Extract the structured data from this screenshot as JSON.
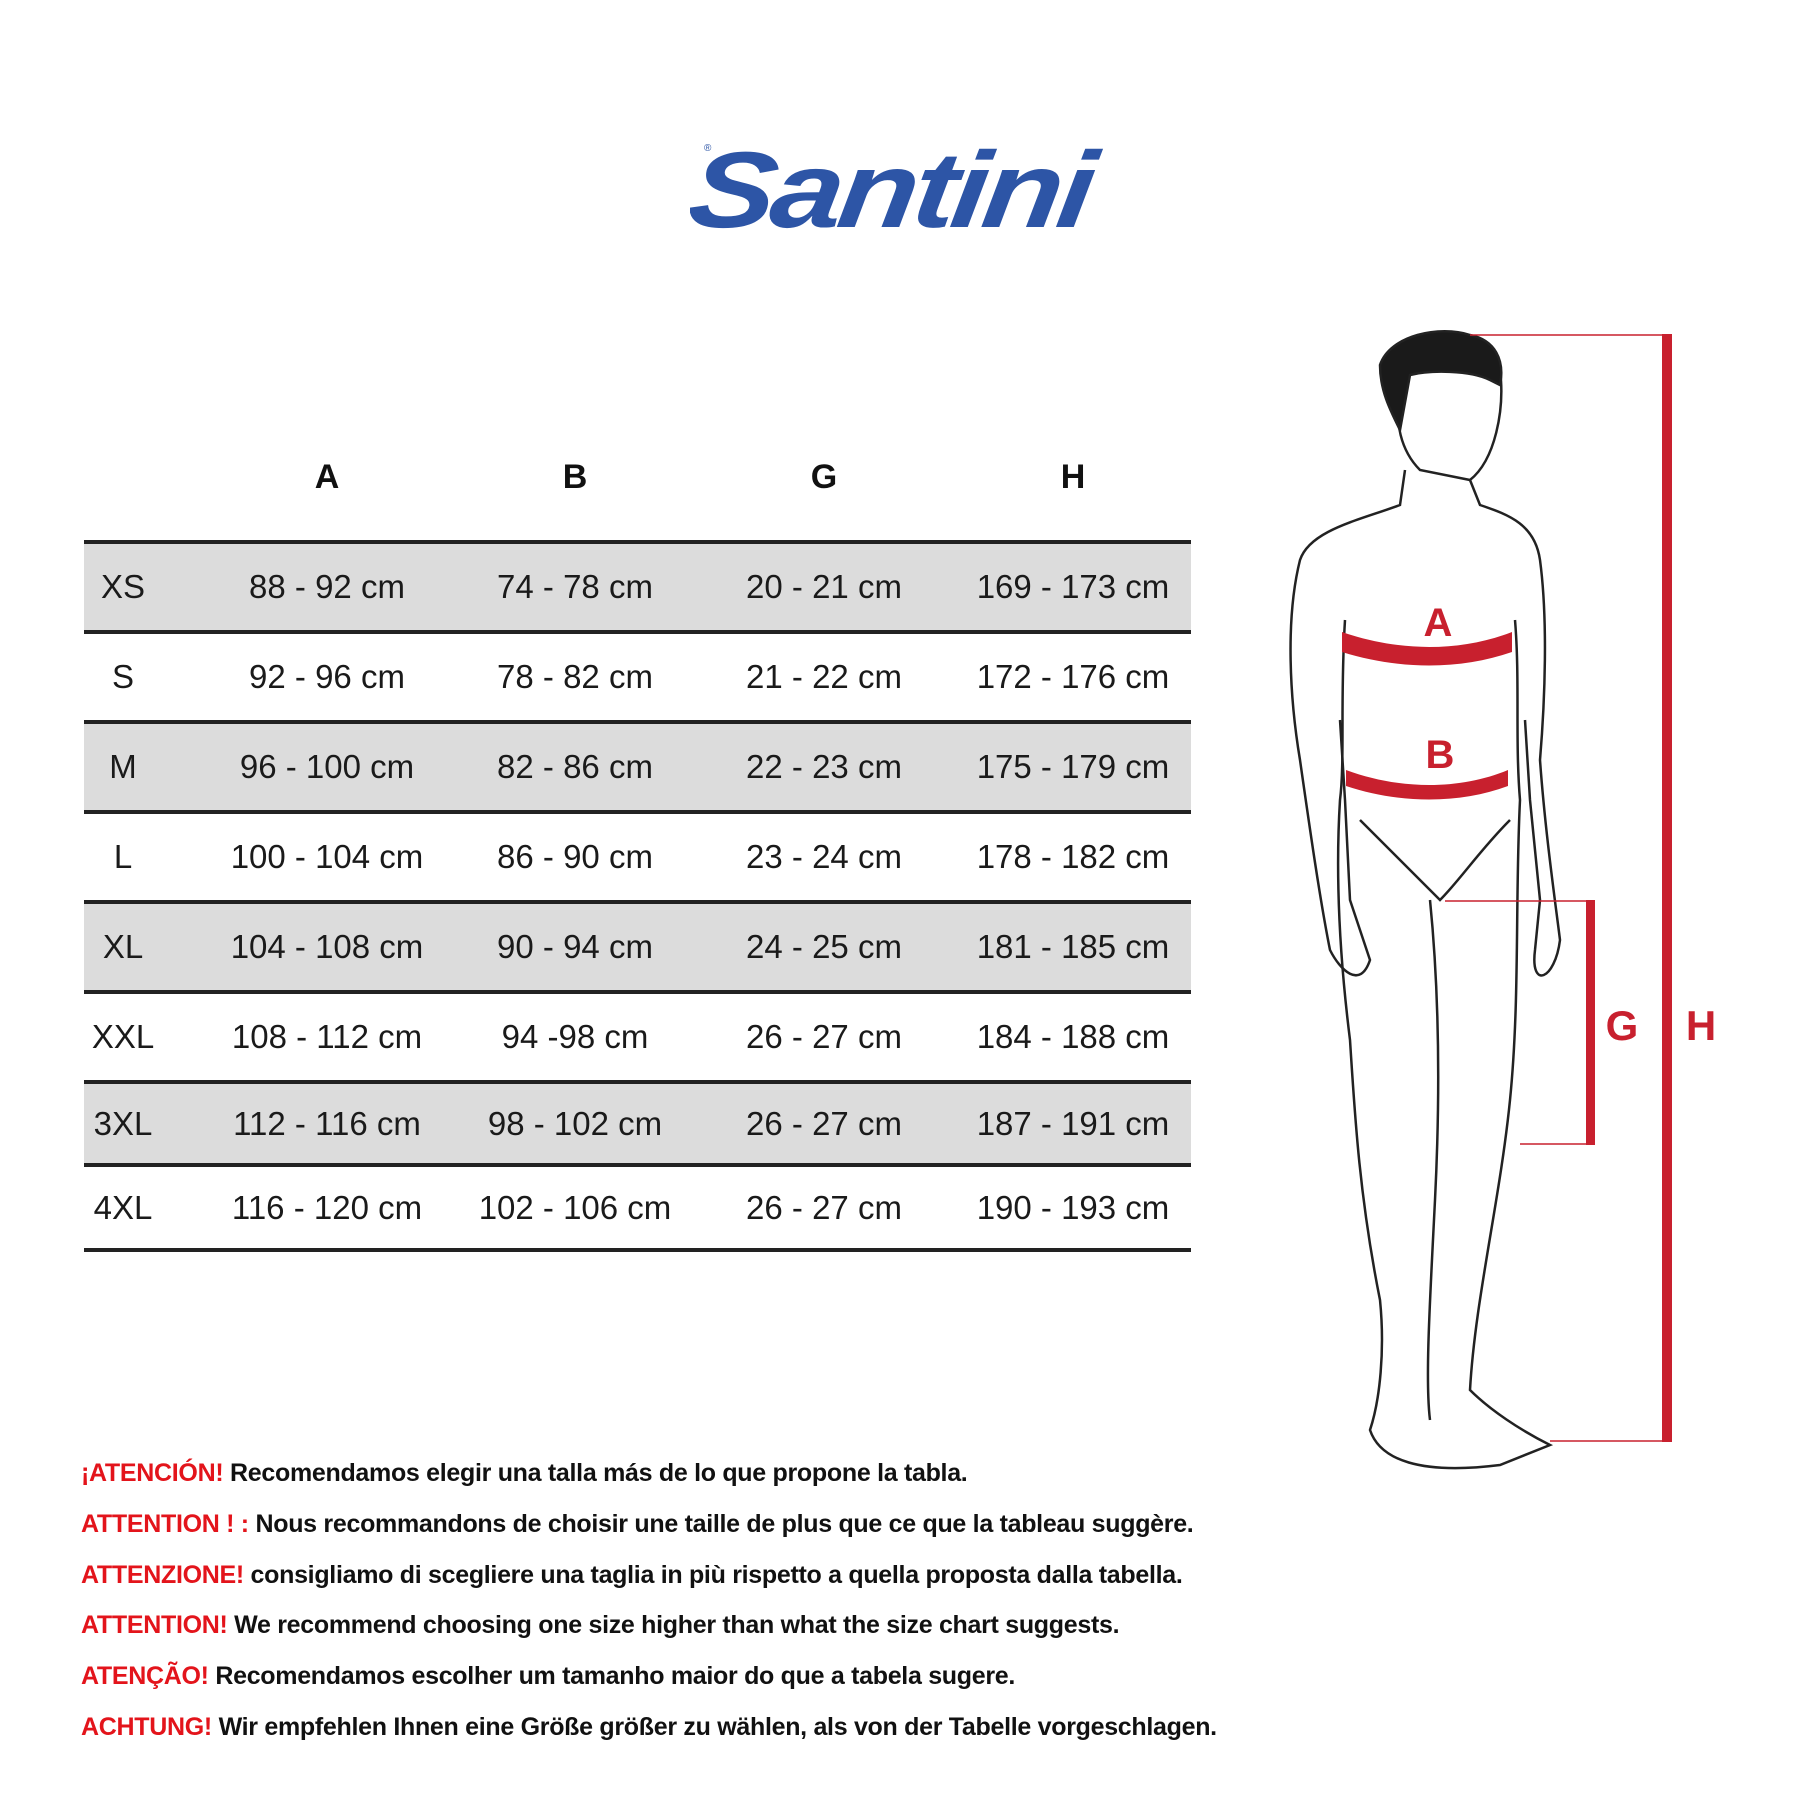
{
  "brand": {
    "logo_text": "Santini",
    "color": "#2d55a6"
  },
  "table": {
    "headers": [
      "A",
      "B",
      "G",
      "H"
    ],
    "rows": [
      {
        "size": "XS",
        "A": "88 - 92 cm",
        "B": "74 - 78 cm",
        "G": "20 - 21 cm",
        "H": "169 - 173 cm"
      },
      {
        "size": "S",
        "A": "92 - 96 cm",
        "B": "78 - 82 cm",
        "G": "21 - 22 cm",
        "H": "172 - 176 cm"
      },
      {
        "size": "M",
        "A": "96 - 100 cm",
        "B": "82 - 86 cm",
        "G": "22 - 23 cm",
        "H": "175 - 179 cm"
      },
      {
        "size": "L",
        "A": "100 - 104 cm",
        "B": "86 - 90 cm",
        "G": "23 - 24 cm",
        "H": "178 - 182 cm"
      },
      {
        "size": "XL",
        "A": "104 - 108 cm",
        "B": "90 - 94 cm",
        "G": "24 - 25 cm",
        "H": "181 - 185 cm"
      },
      {
        "size": "XXL",
        "A": "108 - 112 cm",
        "B": "94 -98 cm",
        "G": "26 - 27 cm",
        "H": "184 - 188 cm"
      },
      {
        "size": "3XL",
        "A": "112 - 116 cm",
        "B": "98 - 102 cm",
        "G": "26 - 27 cm",
        "H": "187 - 191 cm"
      },
      {
        "size": "4XL",
        "A": "116 - 120 cm",
        "B": "102 - 106 cm",
        "G": "26 - 27 cm",
        "H": "190 - 193 cm"
      }
    ]
  },
  "figure": {
    "labels": {
      "A": "A",
      "B": "B",
      "G": "G",
      "H": "H"
    },
    "accent": "#c8202e"
  },
  "notes": [
    {
      "warn": "¡ATENCIÓN!",
      "text": " Recomendamos elegir una talla más de lo que propone la tabla."
    },
    {
      "warn": "ATTENTION ! :",
      "text": " Nous recommandons de choisir une taille de plus que ce que la tableau suggère."
    },
    {
      "warn": "ATTENZIONE!",
      "text": " consigliamo di scegliere una taglia in più rispetto a quella proposta dalla tabella."
    },
    {
      "warn": "ATTENTION!",
      "text": " We recommend choosing one size higher than what the size chart suggests."
    },
    {
      "warn": "ATENÇÃO!",
      "text": " Recomendamos escolher um tamanho maior do que a tabela sugere."
    },
    {
      "warn": "ACHTUNG!",
      "text": " Wir empfehlen Ihnen eine Größe größer zu wählen, als von der Tabelle vorgeschlagen."
    }
  ]
}
